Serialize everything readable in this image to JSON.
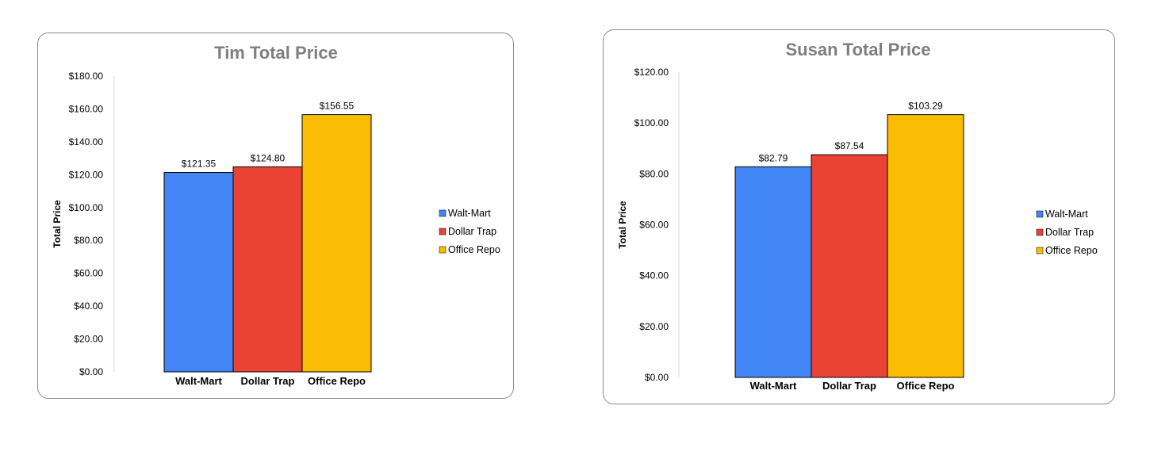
{
  "chart_data": [
    {
      "type": "bar",
      "title": "Tim Total Price",
      "xlabel": "",
      "ylabel": "Total Price",
      "categories": [
        "Walt-Mart",
        "Dollar Trap",
        "Office Repo"
      ],
      "values": [
        121.35,
        124.8,
        156.55
      ],
      "data_labels": [
        "$121.35",
        "$124.80",
        "$156.55"
      ],
      "colors": [
        "#4285f4",
        "#ea4335",
        "#fbbc04"
      ],
      "ylim": [
        0,
        180
      ],
      "yticks": [
        0,
        20,
        40,
        60,
        80,
        100,
        120,
        140,
        160,
        180
      ],
      "ytick_labels": [
        "$0.00",
        "$20.00",
        "$40.00",
        "$60.00",
        "$80.00",
        "$100.00",
        "$120.00",
        "$140.00",
        "$160.00",
        "$180.00"
      ],
      "legend": [
        "Walt-Mart",
        "Dollar Trap",
        "Office Repo"
      ],
      "legend_position": "right",
      "grid": false
    },
    {
      "type": "bar",
      "title": "Susan Total Price",
      "xlabel": "",
      "ylabel": "Total Price",
      "categories": [
        "Walt-Mart",
        "Dollar Trap",
        "Office Repo"
      ],
      "values": [
        82.79,
        87.54,
        103.29
      ],
      "data_labels": [
        "$82.79",
        "$87.54",
        "$103.29"
      ],
      "colors": [
        "#4285f4",
        "#ea4335",
        "#fbbc04"
      ],
      "ylim": [
        0,
        120
      ],
      "yticks": [
        0,
        20,
        40,
        60,
        80,
        100,
        120
      ],
      "ytick_labels": [
        "$0.00",
        "$20.00",
        "$40.00",
        "$60.00",
        "$80.00",
        "$100.00",
        "$120.00"
      ],
      "legend": [
        "Walt-Mart",
        "Dollar Trap",
        "Office Repo"
      ],
      "legend_position": "right",
      "grid": false
    }
  ]
}
